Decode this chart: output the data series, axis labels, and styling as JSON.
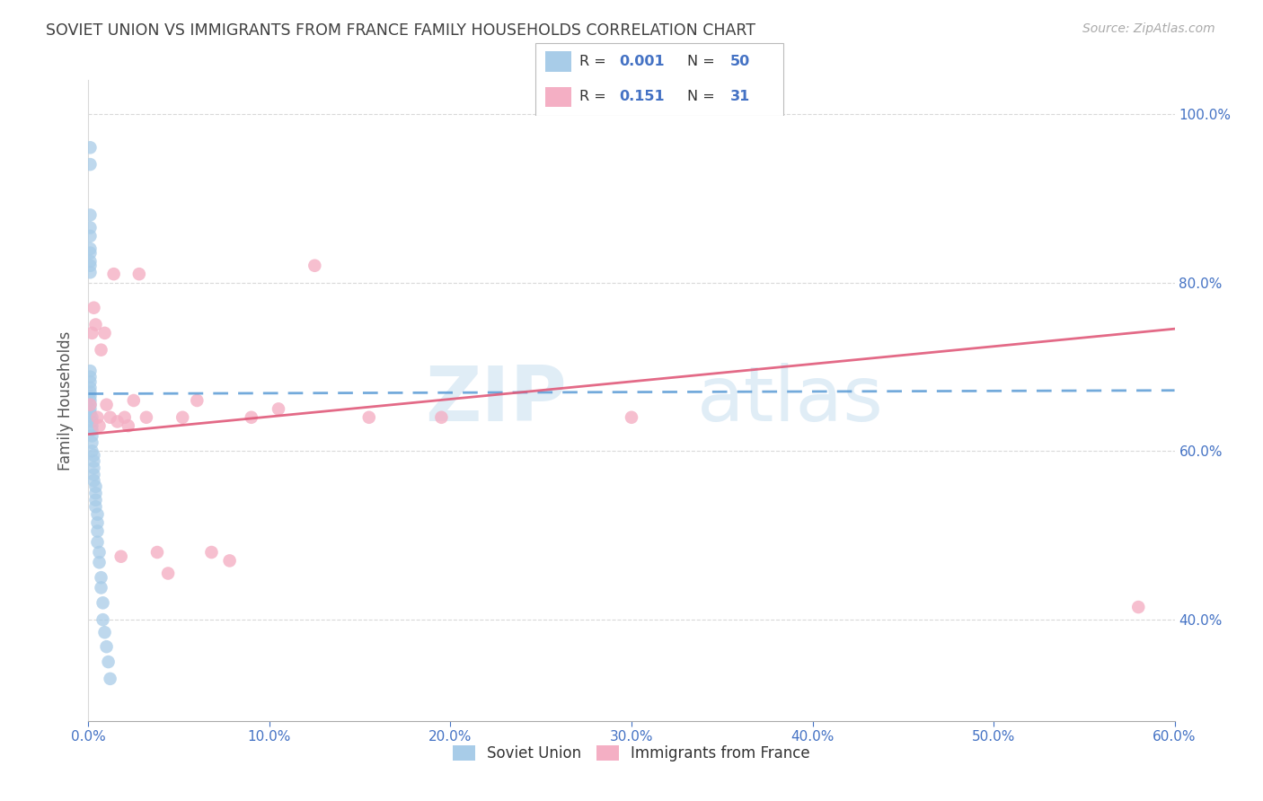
{
  "title": "SOVIET UNION VS IMMIGRANTS FROM FRANCE FAMILY HOUSEHOLDS CORRELATION CHART",
  "source": "Source: ZipAtlas.com",
  "ylabel": "Family Households",
  "xlim": [
    0.0,
    0.6
  ],
  "ylim": [
    0.28,
    1.04
  ],
  "watermark_zip": "ZIP",
  "watermark_atlas": "atlas",
  "legend1_label": "Soviet Union",
  "legend2_label": "Immigrants from France",
  "R1": "0.001",
  "N1": "50",
  "R2": "0.151",
  "N2": "31",
  "blue_color": "#a8cce8",
  "pink_color": "#f4afc4",
  "blue_line_color": "#5b9bd5",
  "pink_line_color": "#e05a7a",
  "title_color": "#404040",
  "axis_tick_color": "#4472c4",
  "grid_color": "#d9d9d9",
  "soviet_x": [
    0.001,
    0.001,
    0.001,
    0.001,
    0.001,
    0.001,
    0.001,
    0.001,
    0.001,
    0.001,
    0.001,
    0.001,
    0.001,
    0.001,
    0.001,
    0.001,
    0.001,
    0.001,
    0.001,
    0.001,
    0.002,
    0.002,
    0.002,
    0.002,
    0.002,
    0.002,
    0.002,
    0.003,
    0.003,
    0.003,
    0.003,
    0.003,
    0.004,
    0.004,
    0.004,
    0.004,
    0.005,
    0.005,
    0.005,
    0.005,
    0.006,
    0.006,
    0.007,
    0.007,
    0.008,
    0.008,
    0.009,
    0.01,
    0.011,
    0.012
  ],
  "soviet_y": [
    0.96,
    0.94,
    0.88,
    0.865,
    0.855,
    0.84,
    0.835,
    0.825,
    0.82,
    0.812,
    0.695,
    0.688,
    0.682,
    0.675,
    0.67,
    0.665,
    0.66,
    0.655,
    0.65,
    0.645,
    0.64,
    0.635,
    0.63,
    0.625,
    0.618,
    0.61,
    0.6,
    0.595,
    0.588,
    0.58,
    0.572,
    0.565,
    0.558,
    0.55,
    0.542,
    0.534,
    0.525,
    0.515,
    0.505,
    0.492,
    0.48,
    0.468,
    0.45,
    0.438,
    0.42,
    0.4,
    0.385,
    0.368,
    0.35,
    0.33
  ],
  "france_x": [
    0.001,
    0.002,
    0.003,
    0.004,
    0.005,
    0.006,
    0.007,
    0.009,
    0.01,
    0.012,
    0.014,
    0.016,
    0.018,
    0.02,
    0.022,
    0.025,
    0.028,
    0.032,
    0.038,
    0.044,
    0.052,
    0.06,
    0.068,
    0.078,
    0.09,
    0.105,
    0.125,
    0.155,
    0.195,
    0.3,
    0.58
  ],
  "france_y": [
    0.655,
    0.74,
    0.77,
    0.75,
    0.64,
    0.63,
    0.72,
    0.74,
    0.655,
    0.64,
    0.81,
    0.635,
    0.475,
    0.64,
    0.63,
    0.66,
    0.81,
    0.64,
    0.48,
    0.455,
    0.64,
    0.66,
    0.48,
    0.47,
    0.64,
    0.65,
    0.82,
    0.64,
    0.64,
    0.64,
    0.415
  ],
  "blue_trend_y0": 0.668,
  "blue_trend_y1": 0.672,
  "pink_trend_y0": 0.62,
  "pink_trend_y1": 0.745
}
